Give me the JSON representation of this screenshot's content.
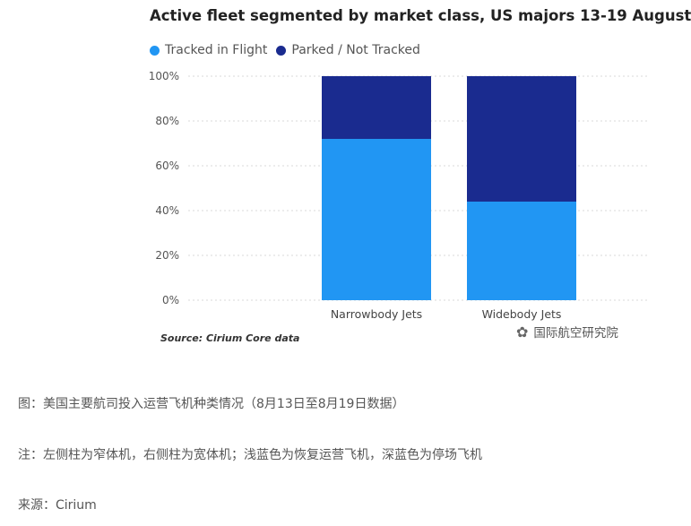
{
  "chart_data": {
    "type": "bar",
    "stacked": true,
    "title": "Active fleet segmented by market class, US majors 13-19 August",
    "categories": [
      "Narrowbody Jets",
      "Widebody Jets"
    ],
    "series": [
      {
        "name": "Tracked in Flight",
        "values": [
          72,
          44
        ],
        "color": "#2196F3"
      },
      {
        "name": "Parked / Not Tracked",
        "values": [
          28,
          56
        ],
        "color": "#1A2B8F"
      }
    ],
    "ylim": [
      0,
      100
    ],
    "yticks": [
      "0%",
      "20%",
      "40%",
      "60%",
      "80%",
      "100%"
    ],
    "grid": true,
    "legend_position": "top-left"
  },
  "source_note": "Source: Cirium Core data",
  "watermark": "国际航空研究院",
  "captions": {
    "figure": "图：美国主要航司投入运营飞机种类情况（8月13日至8月19日数据）",
    "note": "注：左侧柱为窄体机，右侧柱为宽体机；浅蓝色为恢复运营飞机，深蓝色为停场飞机",
    "source": "来源：Cirium"
  }
}
